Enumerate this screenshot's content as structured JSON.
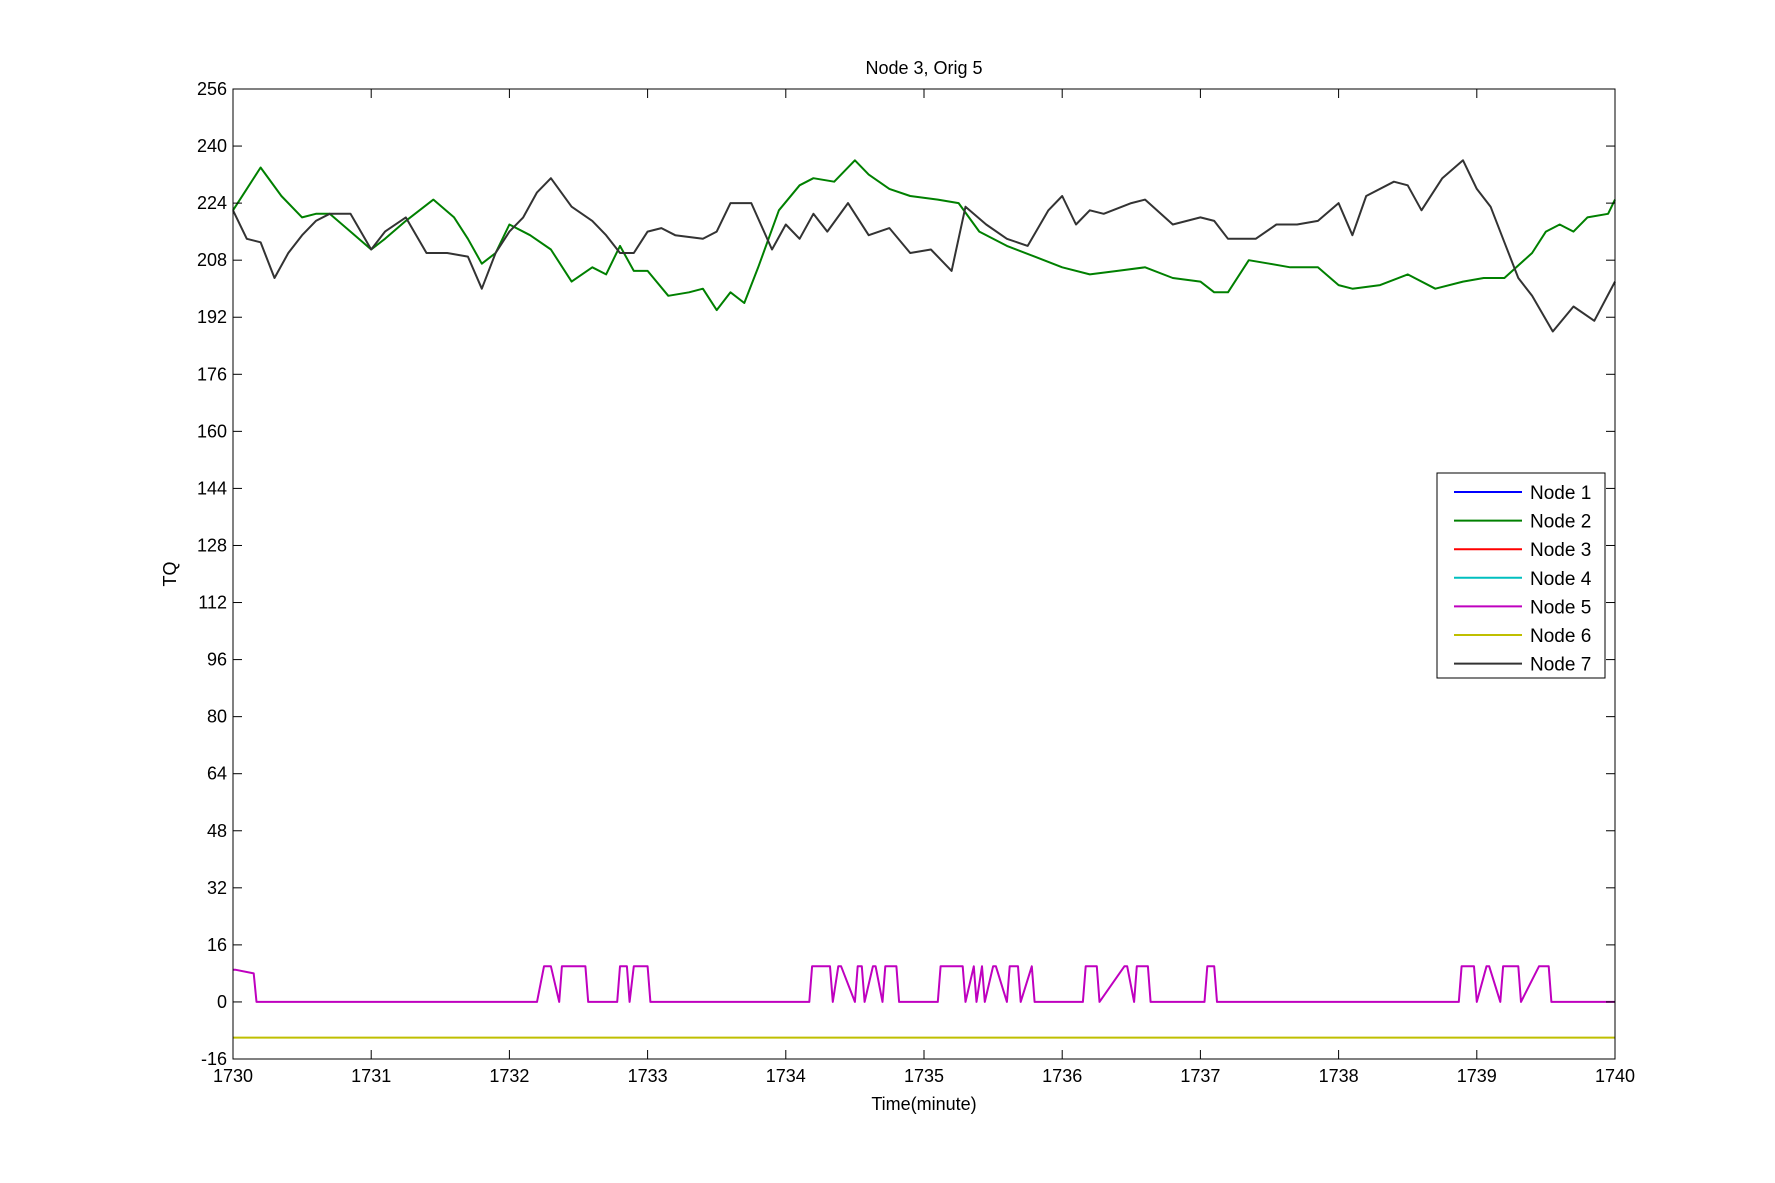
{
  "chart_data": {
    "type": "line",
    "title": "Node 3, Orig 5",
    "xlabel": "Time(minute)",
    "ylabel": "TQ",
    "xlim": [
      1730,
      1740
    ],
    "ylim": [
      -16,
      256
    ],
    "x_ticks": [
      1730,
      1731,
      1732,
      1733,
      1734,
      1735,
      1736,
      1737,
      1738,
      1739,
      1740
    ],
    "y_ticks": [
      -16,
      0,
      16,
      32,
      48,
      64,
      80,
      96,
      112,
      128,
      144,
      160,
      176,
      192,
      208,
      224,
      240,
      256
    ],
    "grid": false,
    "legend_position": "right",
    "series": [
      {
        "name": "Node 1",
        "color": "#0000ff",
        "x": [],
        "y": []
      },
      {
        "name": "Node 2",
        "color": "#008000",
        "x": [
          1730,
          1730.1,
          1730.2,
          1730.35,
          1730.5,
          1730.6,
          1730.7,
          1730.85,
          1731,
          1731.1,
          1731.25,
          1731.45,
          1731.6,
          1731.7,
          1731.8,
          1731.9,
          1732,
          1732.15,
          1732.3,
          1732.45,
          1732.6,
          1732.7,
          1732.8,
          1732.9,
          1733,
          1733.15,
          1733.3,
          1733.4,
          1733.5,
          1733.6,
          1733.7,
          1733.8,
          1733.95,
          1734.1,
          1734.2,
          1734.35,
          1734.5,
          1734.6,
          1734.75,
          1734.9,
          1735.1,
          1735.25,
          1735.4,
          1735.6,
          1735.8,
          1736,
          1736.2,
          1736.4,
          1736.6,
          1736.8,
          1737,
          1737.1,
          1737.2,
          1737.35,
          1737.5,
          1737.65,
          1737.85,
          1738,
          1738.1,
          1738.3,
          1738.5,
          1738.7,
          1738.9,
          1739.05,
          1739.2,
          1739.4,
          1739.5,
          1739.6,
          1739.7,
          1739.8,
          1739.95,
          1740
        ],
        "y": [
          222,
          228,
          234,
          226,
          220,
          221,
          221,
          216,
          211,
          214,
          219,
          225,
          220,
          214,
          207,
          210,
          218,
          215,
          211,
          202,
          206,
          204,
          212,
          205,
          205,
          198,
          199,
          200,
          194,
          199,
          196,
          206,
          222,
          229,
          231,
          230,
          236,
          232,
          228,
          226,
          225,
          224,
          216,
          212,
          209,
          206,
          204,
          205,
          206,
          203,
          202,
          199,
          199,
          208,
          207,
          206,
          206,
          201,
          200,
          201,
          204,
          200,
          202,
          203,
          203,
          210,
          216,
          218,
          216,
          220,
          221,
          225
        ]
      },
      {
        "name": "Node 3",
        "color": "#ff0000",
        "x": [],
        "y": []
      },
      {
        "name": "Node 4",
        "color": "#00bfbf",
        "x": [],
        "y": []
      },
      {
        "name": "Node 5",
        "color": "#bf00bf",
        "x": [
          1730,
          1730.02,
          1730.15,
          1730.17,
          1732.2,
          1732.25,
          1732.3,
          1732.36,
          1732.38,
          1732.4,
          1732.42,
          1732.55,
          1732.57,
          1732.78,
          1732.8,
          1732.85,
          1732.87,
          1732.9,
          1732.92,
          1733,
          1733.02,
          1734.17,
          1734.19,
          1734.32,
          1734.34,
          1734.38,
          1734.4,
          1734.5,
          1734.52,
          1734.55,
          1734.57,
          1734.63,
          1734.65,
          1734.7,
          1734.72,
          1734.8,
          1734.82,
          1735.1,
          1735.12,
          1735.28,
          1735.3,
          1735.36,
          1735.38,
          1735.42,
          1735.44,
          1735.5,
          1735.52,
          1735.6,
          1735.62,
          1735.68,
          1735.7,
          1735.78,
          1735.8,
          1736.15,
          1736.17,
          1736.25,
          1736.27,
          1736.45,
          1736.47,
          1736.52,
          1736.54,
          1736.62,
          1736.64,
          1737.03,
          1737.05,
          1737.1,
          1737.12,
          1738.87,
          1738.89,
          1738.98,
          1739,
          1739.07,
          1739.09,
          1739.17,
          1739.19,
          1739.3,
          1739.32,
          1739.45,
          1739.47,
          1739.52,
          1739.54,
          1740
        ],
        "y": [
          9,
          9,
          8,
          0,
          0,
          10,
          10,
          0,
          10,
          10,
          10,
          10,
          0,
          0,
          10,
          10,
          0,
          10,
          10,
          10,
          0,
          0,
          10,
          10,
          0,
          10,
          10,
          0,
          10,
          10,
          0,
          10,
          10,
          0,
          10,
          10,
          0,
          0,
          10,
          10,
          0,
          10,
          0,
          10,
          0,
          10,
          10,
          0,
          10,
          10,
          0,
          10,
          0,
          0,
          10,
          10,
          0,
          10,
          10,
          0,
          10,
          10,
          0,
          0,
          10,
          10,
          0,
          0,
          10,
          10,
          0,
          10,
          10,
          0,
          10,
          10,
          0,
          10,
          10,
          10,
          0,
          0
        ]
      },
      {
        "name": "Node 6",
        "color": "#bfbf00",
        "x": [
          1730,
          1740
        ],
        "y": [
          -10,
          -10
        ]
      },
      {
        "name": "Node 7",
        "color": "#333333",
        "x": [
          1730,
          1730.1,
          1730.2,
          1730.3,
          1730.4,
          1730.5,
          1730.6,
          1730.7,
          1730.85,
          1731,
          1731.1,
          1731.25,
          1731.4,
          1731.55,
          1731.7,
          1731.8,
          1731.9,
          1732,
          1732.1,
          1732.2,
          1732.3,
          1732.45,
          1732.6,
          1732.7,
          1732.8,
          1732.9,
          1733,
          1733.1,
          1733.2,
          1733.4,
          1733.5,
          1733.6,
          1733.75,
          1733.9,
          1734,
          1734.1,
          1734.2,
          1734.3,
          1734.45,
          1734.6,
          1734.75,
          1734.9,
          1735.05,
          1735.2,
          1735.3,
          1735.45,
          1735.6,
          1735.75,
          1735.9,
          1736,
          1736.1,
          1736.2,
          1736.3,
          1736.5,
          1736.6,
          1736.8,
          1737,
          1737.1,
          1737.2,
          1737.4,
          1737.55,
          1737.7,
          1737.85,
          1738,
          1738.1,
          1738.2,
          1738.4,
          1738.5,
          1738.6,
          1738.75,
          1738.9,
          1739,
          1739.1,
          1739.2,
          1739.3,
          1739.4,
          1739.55,
          1739.7,
          1739.85,
          1740
        ],
        "y": [
          222,
          214,
          213,
          203,
          210,
          215,
          219,
          221,
          221,
          211,
          216,
          220,
          210,
          210,
          209,
          200,
          210,
          216,
          220,
          227,
          231,
          223,
          219,
          215,
          210,
          210,
          216,
          217,
          215,
          214,
          216,
          224,
          224,
          211,
          218,
          214,
          221,
          216,
          224,
          215,
          217,
          210,
          211,
          205,
          223,
          218,
          214,
          212,
          222,
          226,
          218,
          222,
          221,
          224,
          225,
          218,
          220,
          219,
          214,
          214,
          218,
          218,
          219,
          224,
          215,
          226,
          230,
          229,
          222,
          231,
          236,
          228,
          223,
          213,
          203,
          198,
          188,
          195,
          191,
          202
        ]
      }
    ]
  }
}
